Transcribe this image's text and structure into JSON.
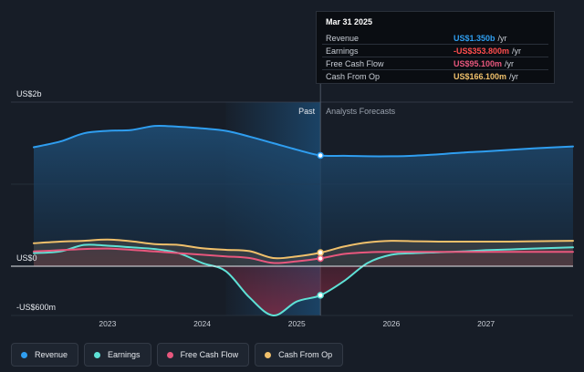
{
  "chart_data": {
    "type": "line",
    "ylabels": {
      "top": "US$2b",
      "zero": "US$0",
      "bottom": "-US$600m"
    },
    "ylim": [
      -600,
      2000
    ],
    "xlim": [
      2022.22,
      2027.92
    ],
    "x_ticks": [
      2023,
      2024,
      2025,
      2026,
      2027
    ],
    "x_tick_labels": [
      "2023",
      "2024",
      "2025",
      "2026",
      "2027"
    ],
    "divider_x": 2025.25,
    "highlight_start": 2024.25,
    "region_labels": {
      "past": "Past",
      "forecast": "Analysts Forecasts"
    },
    "series": [
      {
        "name": "Revenue",
        "color": "#2f9ef0",
        "fill": true,
        "points": [
          [
            2022.22,
            1450
          ],
          [
            2022.5,
            1520
          ],
          [
            2022.75,
            1620
          ],
          [
            2023.0,
            1650
          ],
          [
            2023.25,
            1660
          ],
          [
            2023.5,
            1710
          ],
          [
            2023.75,
            1700
          ],
          [
            2024.0,
            1680
          ],
          [
            2024.25,
            1650
          ],
          [
            2024.5,
            1580
          ],
          [
            2024.75,
            1500
          ],
          [
            2025.0,
            1420
          ],
          [
            2025.25,
            1350
          ],
          [
            2025.5,
            1345
          ],
          [
            2025.75,
            1340
          ],
          [
            2026.0,
            1340
          ],
          [
            2026.25,
            1348
          ],
          [
            2026.5,
            1365
          ],
          [
            2026.75,
            1385
          ],
          [
            2027.0,
            1400
          ],
          [
            2027.25,
            1418
          ],
          [
            2027.5,
            1435
          ],
          [
            2027.92,
            1460
          ]
        ]
      },
      {
        "name": "Earnings",
        "color": "#5ee1d6",
        "fill": false,
        "points": [
          [
            2022.22,
            160
          ],
          [
            2022.5,
            180
          ],
          [
            2022.75,
            260
          ],
          [
            2023.0,
            250
          ],
          [
            2023.25,
            230
          ],
          [
            2023.5,
            210
          ],
          [
            2023.75,
            160
          ],
          [
            2024.0,
            40
          ],
          [
            2024.25,
            -60
          ],
          [
            2024.5,
            -380
          ],
          [
            2024.75,
            -600
          ],
          [
            2025.0,
            -430
          ],
          [
            2025.25,
            -354
          ],
          [
            2025.5,
            -180
          ],
          [
            2025.75,
            40
          ],
          [
            2026.0,
            140
          ],
          [
            2026.25,
            160
          ],
          [
            2026.5,
            170
          ],
          [
            2026.75,
            180
          ],
          [
            2027.0,
            195
          ],
          [
            2027.25,
            205
          ],
          [
            2027.5,
            215
          ],
          [
            2027.92,
            230
          ]
        ]
      },
      {
        "name": "Free Cash Flow",
        "color": "#e8577d",
        "fill": false,
        "points": [
          [
            2022.22,
            180
          ],
          [
            2022.5,
            195
          ],
          [
            2022.75,
            210
          ],
          [
            2023.0,
            215
          ],
          [
            2023.25,
            200
          ],
          [
            2023.5,
            180
          ],
          [
            2023.75,
            160
          ],
          [
            2024.0,
            140
          ],
          [
            2024.25,
            120
          ],
          [
            2024.5,
            100
          ],
          [
            2024.75,
            40
          ],
          [
            2025.0,
            60
          ],
          [
            2025.25,
            95
          ],
          [
            2025.5,
            150
          ],
          [
            2025.75,
            170
          ],
          [
            2026.0,
            175
          ],
          [
            2026.25,
            175
          ],
          [
            2026.5,
            175
          ],
          [
            2026.75,
            175
          ],
          [
            2027.0,
            175
          ],
          [
            2027.25,
            175
          ],
          [
            2027.5,
            175
          ],
          [
            2027.92,
            175
          ]
        ]
      },
      {
        "name": "Cash From Op",
        "color": "#f0c06b",
        "fill": false,
        "points": [
          [
            2022.22,
            280
          ],
          [
            2022.5,
            300
          ],
          [
            2022.75,
            310
          ],
          [
            2023.0,
            325
          ],
          [
            2023.25,
            305
          ],
          [
            2023.5,
            270
          ],
          [
            2023.75,
            260
          ],
          [
            2024.0,
            220
          ],
          [
            2024.25,
            200
          ],
          [
            2024.5,
            185
          ],
          [
            2024.75,
            100
          ],
          [
            2025.0,
            120
          ],
          [
            2025.25,
            166
          ],
          [
            2025.5,
            240
          ],
          [
            2025.75,
            290
          ],
          [
            2026.0,
            310
          ],
          [
            2026.25,
            305
          ],
          [
            2026.5,
            300
          ],
          [
            2026.75,
            300
          ],
          [
            2027.0,
            300
          ],
          [
            2027.25,
            300
          ],
          [
            2027.5,
            305
          ],
          [
            2027.92,
            310
          ]
        ]
      }
    ]
  },
  "tooltip": {
    "date": "Mar 31 2025",
    "unit": "/yr",
    "rows": [
      {
        "label": "Revenue",
        "value": "US$1.350b",
        "color": "#2f9ef0"
      },
      {
        "label": "Earnings",
        "value": "-US$353.800m",
        "color": "#ff4d4d"
      },
      {
        "label": "Free Cash Flow",
        "value": "US$95.100m",
        "color": "#e8577d"
      },
      {
        "label": "Cash From Op",
        "value": "US$166.100m",
        "color": "#f0c06b"
      }
    ]
  },
  "legend": [
    {
      "label": "Revenue",
      "color": "#2f9ef0"
    },
    {
      "label": "Earnings",
      "color": "#5ee1d6"
    },
    {
      "label": "Free Cash Flow",
      "color": "#e8577d"
    },
    {
      "label": "Cash From Op",
      "color": "#f0c06b"
    }
  ]
}
